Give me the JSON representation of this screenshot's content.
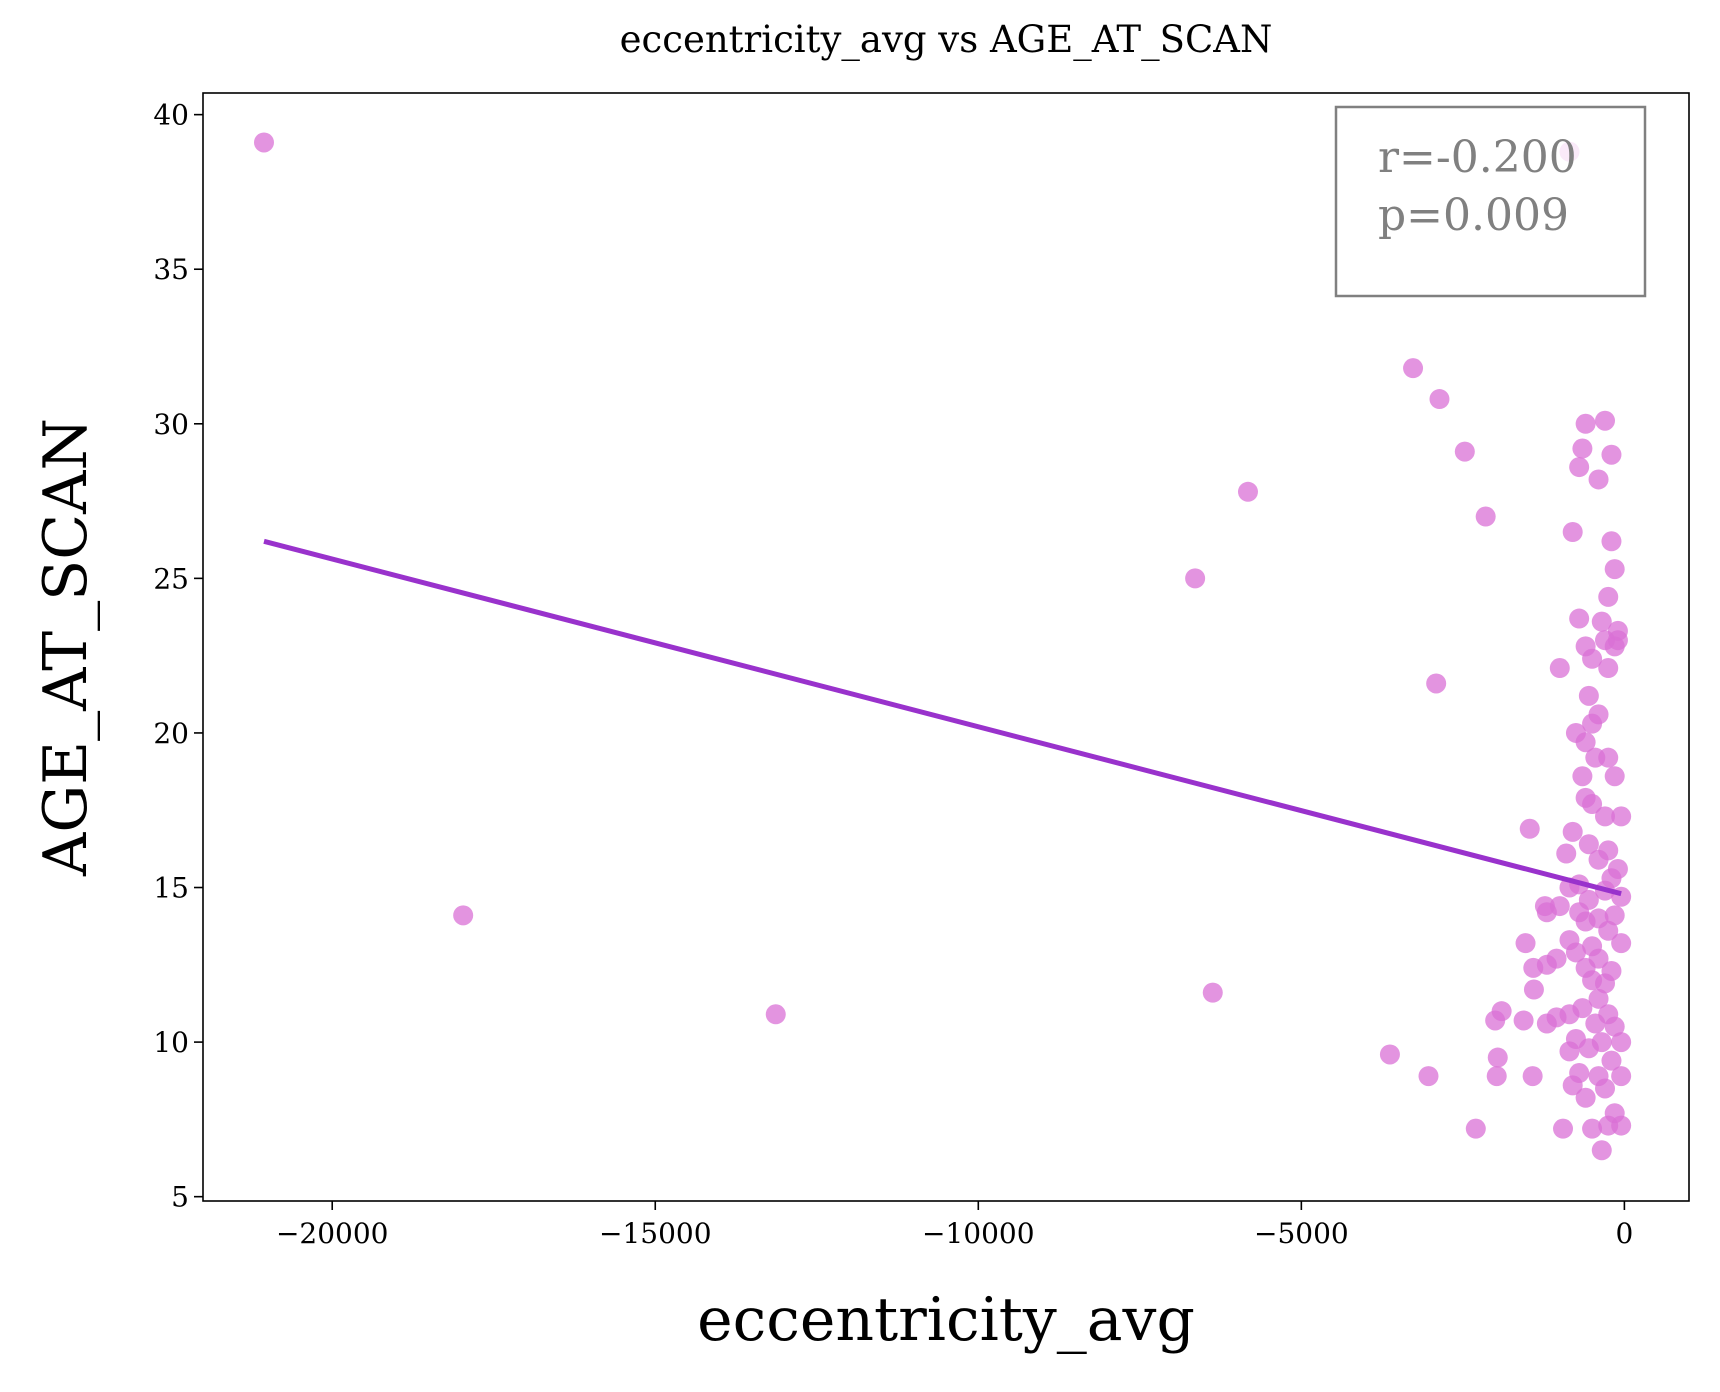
{
  "chart_data": {
    "type": "scatter",
    "title": "eccentricity_avg vs AGE_AT_SCAN",
    "x_label": "eccentricity_avg",
    "y_label": "AGE_AT_SCAN",
    "annotations": [
      "r=-0.200",
      "p=0.009"
    ],
    "xlim": [
      -22000,
      1000
    ],
    "ylim": [
      4.86,
      40.7
    ],
    "xticks": [
      {
        "value": -20000,
        "label": "−20000"
      },
      {
        "value": -15000,
        "label": "−15000"
      },
      {
        "value": -10000,
        "label": "−10000"
      },
      {
        "value": -5000,
        "label": "−5000"
      },
      0
    ],
    "yticks": [
      5,
      10,
      15,
      20,
      25,
      30,
      35,
      40
    ],
    "series": [
      {
        "color": "#da70d6",
        "x": [
          -21056,
          -17973,
          -13135,
          -6644,
          -5826,
          -6371,
          -3271,
          -2862,
          -2470,
          -2147,
          -2913,
          -3629,
          -3032,
          -2300,
          -1976,
          -1960,
          -2000,
          -1900,
          -1465,
          -1530,
          -1410,
          -1400,
          -1420,
          -1560,
          -1200,
          -1230,
          -850,
          -600,
          -300,
          -650,
          -200,
          -700,
          -400,
          -800,
          -200,
          -150,
          -250,
          -700,
          -350,
          -100,
          -600,
          -300,
          -150,
          -1000,
          -500,
          -250,
          -100,
          -550,
          -400,
          -750,
          -500,
          -600,
          -450,
          -250,
          -650,
          -150,
          -600,
          -500,
          -300,
          -50,
          -800,
          -550,
          -250,
          -900,
          -400,
          -100,
          -700,
          -850,
          -200,
          -550,
          -300,
          -50,
          -700,
          -1000,
          -400,
          -150,
          -600,
          -250,
          -850,
          -500,
          -50,
          -1050,
          -750,
          -400,
          -1200,
          -600,
          -200,
          -500,
          -300,
          -400,
          -650,
          -850,
          -250,
          -1050,
          -450,
          -150,
          -1200,
          -750,
          -350,
          -50,
          -850,
          -550,
          -200,
          -700,
          -400,
          -50,
          -800,
          -300,
          -600,
          -150,
          -950,
          -500,
          -250,
          -50,
          -350
        ],
        "y": [
          39.1,
          14.1,
          10.9,
          25.0,
          27.8,
          11.6,
          31.8,
          30.8,
          29.1,
          27.0,
          21.6,
          9.6,
          8.9,
          7.2,
          8.9,
          9.5,
          10.7,
          11.0,
          16.9,
          13.2,
          12.4,
          11.7,
          8.9,
          10.7,
          14.2,
          14.4,
          38.8,
          30.0,
          30.1,
          29.2,
          29.0,
          28.6,
          28.2,
          26.5,
          26.2,
          25.3,
          24.4,
          23.7,
          23.6,
          23.3,
          22.8,
          23.0,
          22.8,
          22.1,
          22.4,
          22.1,
          23.0,
          21.2,
          20.6,
          20.0,
          20.3,
          19.7,
          19.2,
          19.2,
          18.6,
          18.6,
          17.9,
          17.7,
          17.3,
          17.3,
          16.8,
          16.4,
          16.2,
          16.1,
          15.9,
          15.6,
          15.1,
          15.0,
          15.3,
          14.6,
          14.9,
          14.7,
          14.2,
          14.4,
          14.0,
          14.1,
          13.9,
          13.6,
          13.3,
          13.1,
          13.2,
          12.7,
          12.9,
          12.7,
          12.5,
          12.4,
          12.3,
          12.0,
          11.9,
          11.4,
          11.1,
          10.9,
          10.9,
          10.8,
          10.6,
          10.5,
          10.6,
          10.1,
          10.0,
          10.0,
          9.7,
          9.8,
          9.4,
          9.0,
          8.9,
          8.9,
          8.6,
          8.5,
          8.2,
          7.7,
          7.2,
          7.2,
          7.3,
          7.3,
          6.5
        ]
      }
    ],
    "fit": {
      "color": "#9932cc",
      "x": [
        -21056,
        -50
      ],
      "y": [
        26.2,
        14.8
      ]
    }
  }
}
